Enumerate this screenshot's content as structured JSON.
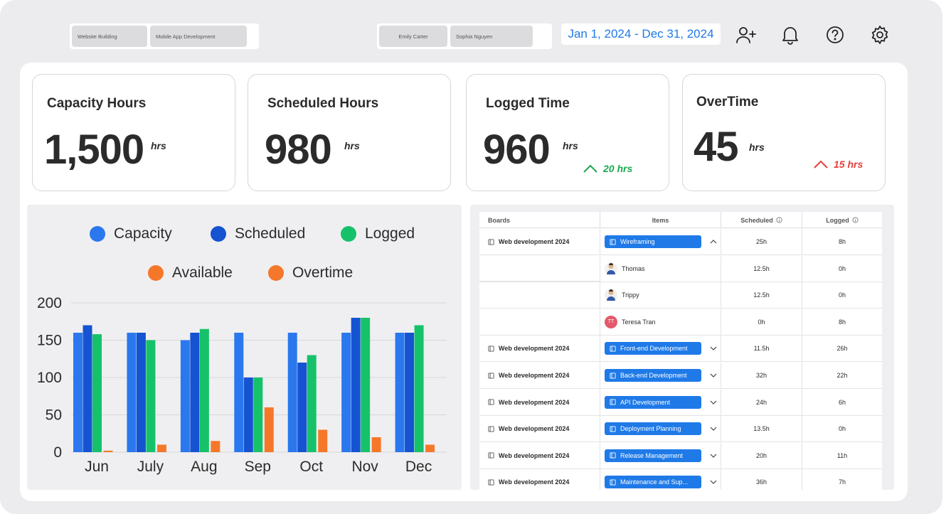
{
  "filters": {
    "projects": [
      "Website Building",
      "Mobile App Development"
    ],
    "people": [
      "Emily Carter",
      "Sophia Nguyen"
    ],
    "date_range": "Jan 1, 2024 - Dec 31, 2024"
  },
  "header_icons": [
    "add-user-icon",
    "bell-icon",
    "help-icon",
    "gear-icon"
  ],
  "kpis": [
    {
      "title": "Capacity Hours",
      "value": "1,500",
      "unit": "hrs",
      "delta": ""
    },
    {
      "title": "Scheduled Hours",
      "value": "980",
      "unit": "hrs",
      "delta": ""
    },
    {
      "title": "Logged Time",
      "value": "960",
      "unit": "hrs",
      "delta": "20 hrs",
      "delta_direction": "up",
      "delta_color": "#1aa84f"
    },
    {
      "title": "OverTime",
      "value": "45",
      "unit": "hrs",
      "delta": "15 hrs",
      "delta_direction": "up",
      "delta_color": "#e2403b"
    }
  ],
  "chart_data": {
    "type": "bar",
    "categories": [
      "Jun",
      "July",
      "Aug",
      "Sep",
      "Oct",
      "Nov",
      "Dec"
    ],
    "series": [
      {
        "name": "Capacity",
        "color": "#2b78ee",
        "values": [
          160,
          160,
          150,
          160,
          160,
          160,
          160
        ]
      },
      {
        "name": "Scheduled",
        "color": "#1553d1",
        "values": [
          170,
          160,
          160,
          100,
          120,
          180,
          160
        ]
      },
      {
        "name": "Logged",
        "color": "#15c26a",
        "values": [
          158,
          150,
          165,
          100,
          130,
          180,
          170
        ]
      },
      {
        "name": "Available",
        "color": "#f5782a",
        "values": [
          0,
          0,
          0,
          0,
          0,
          0,
          0
        ]
      },
      {
        "name": "Overtime",
        "color": "#f5782a",
        "values": [
          2,
          10,
          15,
          60,
          30,
          20,
          10
        ]
      }
    ],
    "yticks": [
      "200",
      "150",
      "100",
      "50",
      "0"
    ],
    "ylim": [
      0,
      200
    ],
    "grid": true,
    "legend": "top"
  },
  "table": {
    "headers": [
      "Boards",
      "Items",
      "Scheduled",
      "Logged"
    ],
    "rows": [
      {
        "board": "Web development 2024",
        "item": "Wireframing",
        "kind": "item",
        "chevron": "up",
        "scheduled": "25h",
        "logged": "8h"
      },
      {
        "board": "",
        "item": "Thomas",
        "kind": "person",
        "avatar": "person",
        "scheduled": "12.5h",
        "logged": "0h"
      },
      {
        "board": "",
        "item": "Trippy",
        "kind": "person",
        "avatar": "person",
        "scheduled": "12.5h",
        "logged": "0h"
      },
      {
        "board": "",
        "item": "Teresa Tran",
        "kind": "person",
        "avatar": "TT",
        "scheduled": "0h",
        "logged": "8h"
      },
      {
        "board": "Web development 2024",
        "item": "Front-end Development",
        "kind": "item",
        "chevron": "down",
        "scheduled": "11.5h",
        "logged": "26h"
      },
      {
        "board": "Web development 2024",
        "item": "Back-end Development",
        "kind": "item",
        "chevron": "down",
        "scheduled": "32h",
        "logged": "22h"
      },
      {
        "board": "Web development 2024",
        "item": "API Development",
        "kind": "item",
        "chevron": "down",
        "scheduled": "24h",
        "logged": "6h"
      },
      {
        "board": "Web development 2024",
        "item": "Deployment Planning",
        "kind": "item",
        "chevron": "down",
        "scheduled": "13.5h",
        "logged": "0h"
      },
      {
        "board": "Web development 2024",
        "item": "Release Management",
        "kind": "item",
        "chevron": "down",
        "scheduled": "20h",
        "logged": "11h"
      },
      {
        "board": "Web development 2024",
        "item": "Maintenance and Sup...",
        "kind": "item",
        "chevron": "down",
        "scheduled": "36h",
        "logged": "7h"
      }
    ]
  }
}
